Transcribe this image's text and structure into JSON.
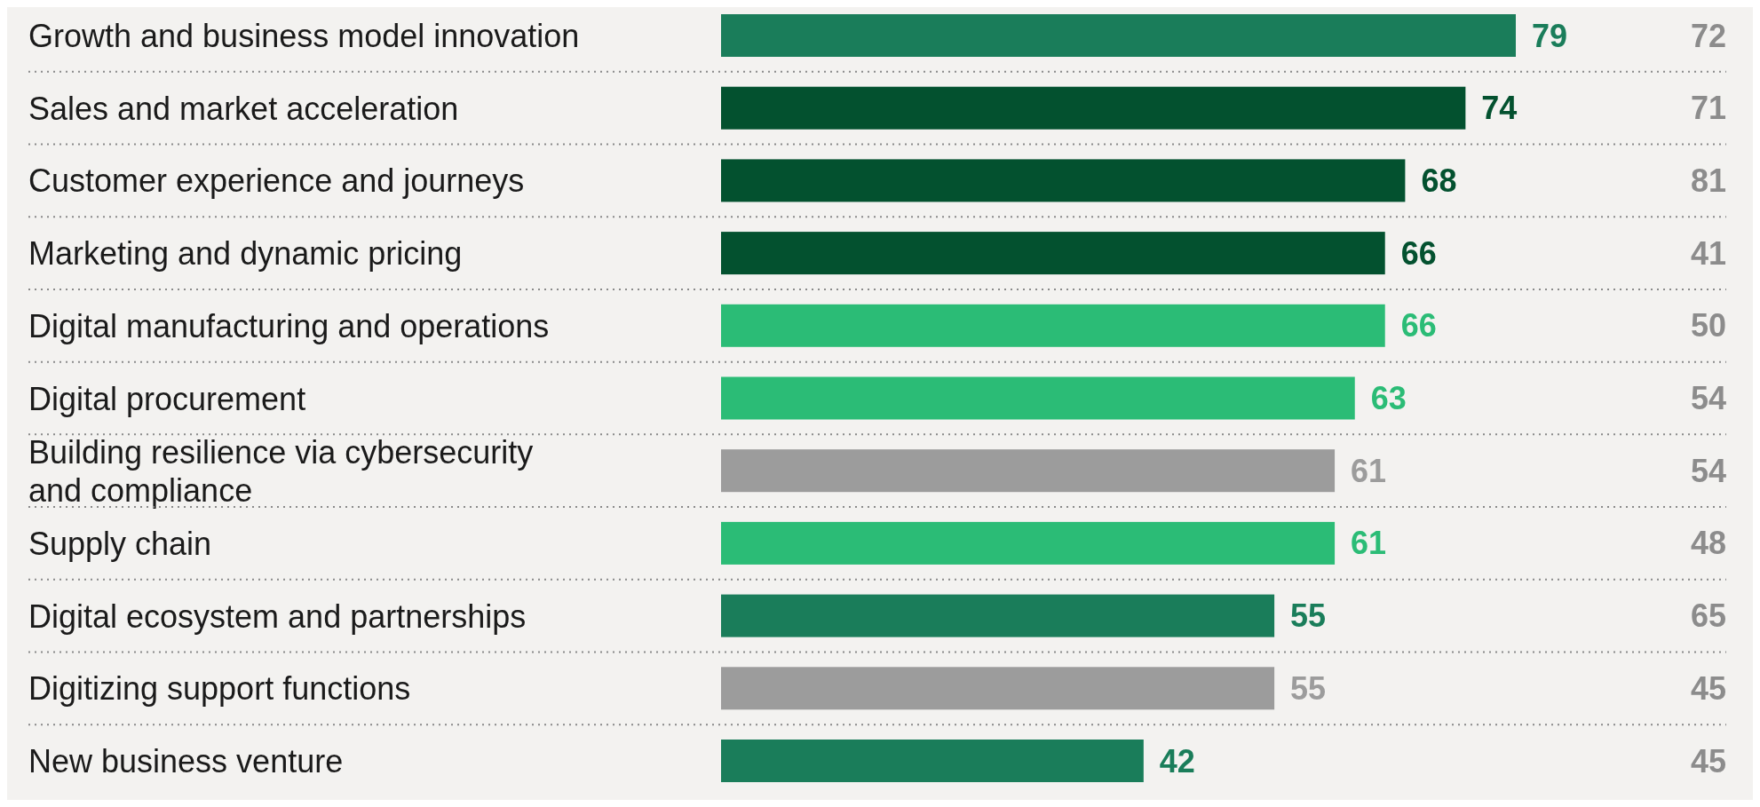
{
  "chart_data": {
    "type": "bar",
    "orientation": "horizontal",
    "data_labels": true,
    "categories": [
      "Growth and business model innovation",
      "Sales and market acceleration",
      "Customer experience and journeys",
      "Marketing and dynamic pricing",
      "Digital manufacturing and operations",
      "Digital procurement",
      "Building resilience via cybersecurity and compliance",
      "Supply chain",
      "Digital ecosystem and partnerships",
      "Digitizing support functions",
      "New business venture"
    ],
    "values": [
      79,
      74,
      68,
      66,
      66,
      63,
      61,
      61,
      55,
      55,
      42
    ],
    "colors": [
      "#1a7d5a",
      "#03512f",
      "#03512f",
      "#03512f",
      "#2bbc76",
      "#2bbc76",
      "#9c9c9c",
      "#2bbc76",
      "#1a7d5a",
      "#9c9c9c",
      "#1a7d5a"
    ],
    "annotations": [
      "72",
      "71",
      "81",
      "41",
      "50",
      "54",
      "54",
      "48",
      "65",
      "45",
      "45"
    ]
  }
}
